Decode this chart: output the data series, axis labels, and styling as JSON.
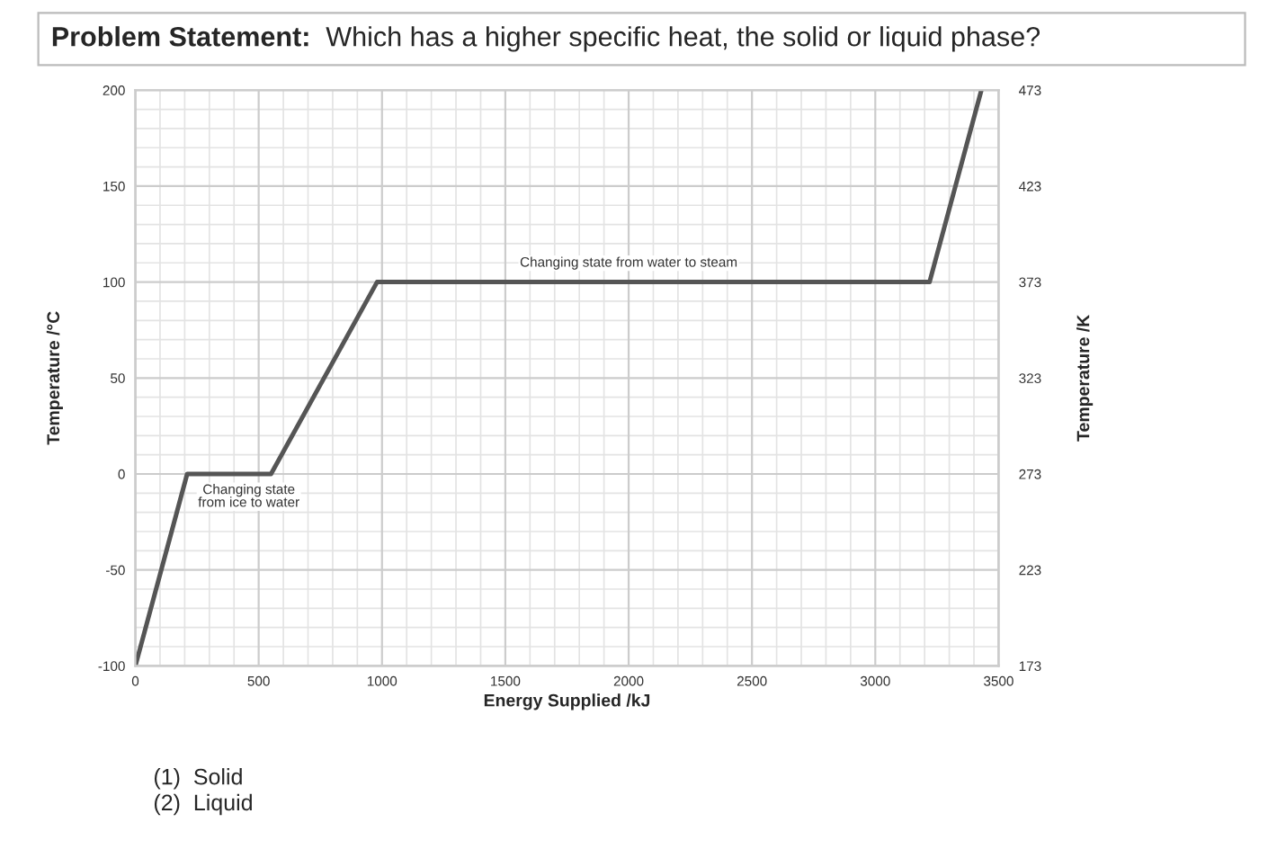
{
  "chart_data": {
    "type": "line",
    "title": "Problem Statement:  Which has a higher specific heat, the solid or liquid phase?",
    "xlabel": "Energy Supplied /kJ",
    "ylabel": "Temperature /°C",
    "y2label": "Temperature /K",
    "x": [
      0,
      210,
      550,
      980,
      3220,
      3430
    ],
    "series": [
      {
        "color": "#555555",
        "values": [
          -100,
          0,
          0,
          100,
          100,
          200
        ]
      }
    ],
    "xlim": [
      0,
      3500
    ],
    "xticks": [
      0,
      500,
      1000,
      1500,
      2000,
      2500,
      3000,
      3500
    ],
    "ylim": [
      -100,
      200
    ],
    "yticks": [
      -100,
      -50,
      0,
      50,
      100,
      150,
      200
    ],
    "y2lim": [
      173,
      473
    ],
    "y2ticks": [
      173,
      223,
      273,
      323,
      373,
      423,
      473
    ],
    "grid": true,
    "marker": "none",
    "line_style": "solid",
    "annotations": [
      {
        "text": "Changing state from water to steam",
        "x": 2000,
        "y": 100
      },
      {
        "text": "Changing state\nfrom ice to water",
        "x": 460,
        "y": 0
      },
      "(1)  Solid\n(2)  Liquid"
    ]
  }
}
